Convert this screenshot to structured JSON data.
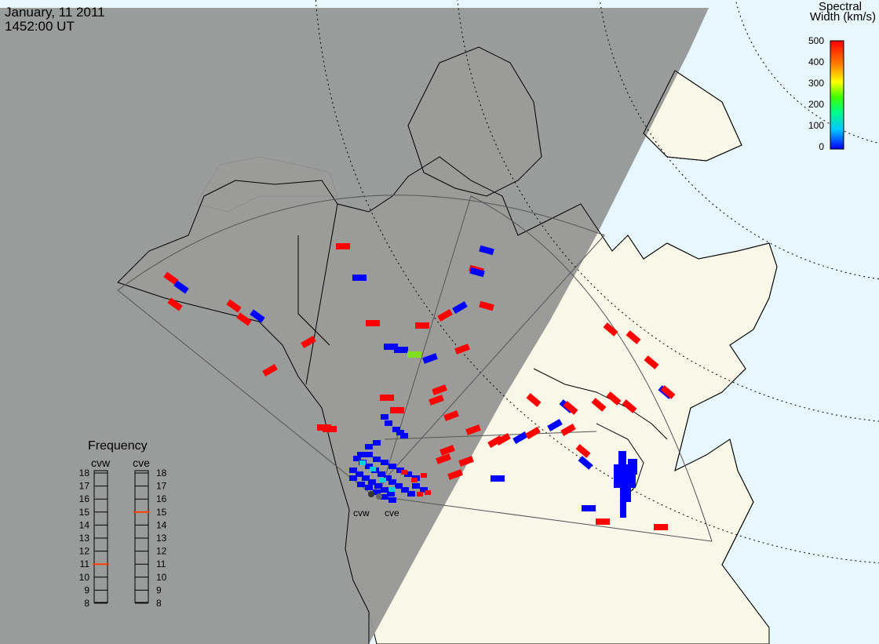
{
  "header": {
    "date": "January, 11 2011",
    "time": "1452:00 UT"
  },
  "colorbar": {
    "title_line1": "Spectral",
    "title_line2": "Width (km/s)",
    "ticks": [
      "500",
      "400",
      "300",
      "200",
      "100",
      "0"
    ],
    "gradient": [
      "#0000ff",
      "#00c8ff",
      "#00ff80",
      "#40ff00",
      "#ffff00",
      "#ff8000",
      "#ff0000"
    ]
  },
  "frequency": {
    "title": "Frequency",
    "radars": [
      {
        "name": "cvw",
        "selected": "11",
        "marker_color": "#ff4000"
      },
      {
        "name": "cve",
        "selected": "15",
        "marker_color": "#ff4000"
      }
    ],
    "levels": [
      "18",
      "17",
      "16",
      "15",
      "14",
      "13",
      "12",
      "11",
      "10",
      "9",
      "8"
    ]
  },
  "map": {
    "colors": {
      "night": "#969696",
      "ocean": "#e8f6fd",
      "land": "#f8f7e8",
      "coast": "#000000",
      "fov": "#555555"
    },
    "radar_labels": [
      "cvw",
      "cve"
    ],
    "width_colors": {
      "high": "#ff0000",
      "low": "#0000ff",
      "mid": "#80e020",
      "cyan": "#00d0e0"
    }
  }
}
